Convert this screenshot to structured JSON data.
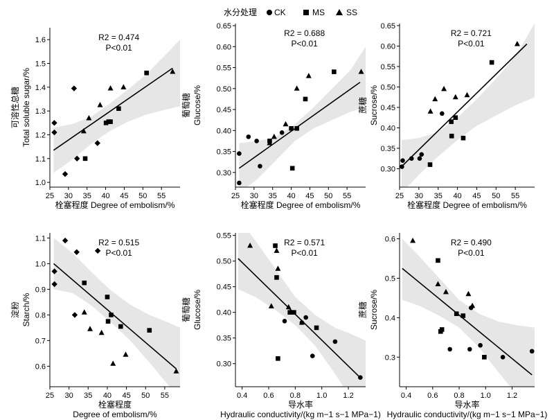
{
  "legend": {
    "title": "水分处理",
    "items": [
      {
        "label": "CK",
        "marker": "circle"
      },
      {
        "label": "MS",
        "marker": "square"
      },
      {
        "label": "SS",
        "marker": "triangle"
      }
    ]
  },
  "chart_data": [
    {
      "type": "scatter",
      "xlabel": "栓塞程度 Degree of embolism/%",
      "ylabel": [
        "可溶性总糖",
        "Total soluble sugar/%"
      ],
      "xlim": [
        25,
        60
      ],
      "ylim": [
        0.98,
        1.65
      ],
      "xticks": [
        25,
        30,
        35,
        40,
        45,
        50,
        55
      ],
      "yticks": [
        1.0,
        1.1,
        1.2,
        1.3,
        1.4,
        1.5,
        1.6
      ],
      "ytick_decimals": 1,
      "stats": {
        "r2": "R2 = 0.474",
        "p": "P<0.01"
      },
      "fit": {
        "x": [
          26,
          58
        ],
        "y": [
          1.135,
          1.48
        ]
      },
      "band": {
        "x": [
          26,
          31,
          36,
          41,
          46,
          51,
          56,
          60
        ],
        "upper": [
          1.23,
          1.245,
          1.275,
          1.33,
          1.39,
          1.455,
          1.535,
          1.6
        ],
        "lower": [
          1.04,
          1.095,
          1.16,
          1.215,
          1.255,
          1.285,
          1.305,
          1.32
        ]
      },
      "series": [
        {
          "marker": "diamond",
          "x": [
            26.2,
            26.2,
            31.5,
            32.3,
            29.1,
            37.8
          ],
          "y": [
            1.21,
            1.25,
            1.395,
            1.1,
            1.035,
            1.165
          ]
        },
        {
          "marker": "square",
          "x": [
            34.5,
            40.1,
            40.8,
            41.3,
            43.5,
            51.0
          ],
          "y": [
            1.1,
            1.25,
            1.255,
            1.255,
            1.31,
            1.46
          ]
        },
        {
          "marker": "triangle",
          "x": [
            34.1,
            35.5,
            38.5,
            41.3,
            44.8,
            58.0
          ],
          "y": [
            1.215,
            1.27,
            1.325,
            1.395,
            1.4,
            1.465
          ]
        }
      ]
    },
    {
      "type": "scatter",
      "xlabel": "栓塞程度 Degree of embolism/%",
      "ylabel": [
        "葡萄糖",
        "Glucose/%"
      ],
      "xlim": [
        25,
        60
      ],
      "ylim": [
        0.265,
        0.655
      ],
      "xticks": [
        25,
        30,
        35,
        40,
        45,
        50,
        55
      ],
      "yticks": [
        0.3,
        0.35,
        0.4,
        0.45,
        0.5,
        0.55,
        0.6,
        0.65
      ],
      "ytick_decimals": 2,
      "stats": {
        "r2": "R2 = 0.688",
        "p": "P<0.01"
      },
      "fit": {
        "x": [
          26,
          58.5
        ],
        "y": [
          0.31,
          0.515
        ]
      },
      "band": {
        "x": [
          26,
          31,
          36,
          41,
          46,
          51,
          56,
          60
        ],
        "upper": [
          0.37,
          0.375,
          0.385,
          0.415,
          0.455,
          0.5,
          0.545,
          0.6
        ],
        "lower": [
          0.25,
          0.285,
          0.33,
          0.375,
          0.405,
          0.425,
          0.445,
          0.455
        ]
      },
      "series": [
        {
          "marker": "circle",
          "x": [
            26.0,
            26.0,
            28.5,
            30.7,
            31.6,
            37.5
          ],
          "y": [
            0.345,
            0.275,
            0.385,
            0.375,
            0.315,
            0.395
          ]
        },
        {
          "marker": "square",
          "x": [
            34.2,
            40.0,
            40.3,
            41.5,
            43.8,
            51.5
          ],
          "y": [
            0.375,
            0.405,
            0.31,
            0.405,
            0.475,
            0.54
          ]
        },
        {
          "marker": "triangle",
          "x": [
            34.2,
            35.4,
            38.5,
            41.5,
            44.7,
            58.8
          ],
          "y": [
            0.37,
            0.385,
            0.415,
            0.5,
            0.53,
            0.54
          ]
        }
      ]
    },
    {
      "type": "scatter",
      "xlabel": "栓塞程度 Degree of embolism/%",
      "ylabel": [
        "蔗糖",
        "Sucrose/%"
      ],
      "xlim": [
        25,
        60
      ],
      "ylim": [
        0.255,
        0.655
      ],
      "xticks": [
        25,
        30,
        35,
        40,
        45,
        50,
        55
      ],
      "yticks": [
        0.3,
        0.35,
        0.4,
        0.45,
        0.5,
        0.55,
        0.6,
        0.65
      ],
      "ytick_decimals": 2,
      "stats": {
        "r2": "R2 = 0.721",
        "p": "P<0.01"
      },
      "fit": {
        "x": [
          25.5,
          58
        ],
        "y": [
          0.305,
          0.605
        ]
      },
      "band": {
        "x": [
          25.5,
          30,
          35,
          40,
          45,
          50,
          55,
          60
        ],
        "upper": [
          0.37,
          0.375,
          0.39,
          0.425,
          0.47,
          0.52,
          0.575,
          0.655
        ],
        "lower": [
          0.24,
          0.285,
          0.33,
          0.37,
          0.405,
          0.43,
          0.455,
          0.475
        ]
      },
      "series": [
        {
          "marker": "circle",
          "x": [
            25.6,
            25.8,
            28.1,
            30.2,
            30.7,
            36.0
          ],
          "y": [
            0.305,
            0.32,
            0.325,
            0.325,
            0.335,
            0.435
          ]
        },
        {
          "marker": "square",
          "x": [
            32.9,
            38.5,
            38.4,
            39.5,
            41.5,
            48.9
          ],
          "y": [
            0.31,
            0.38,
            0.415,
            0.425,
            0.375,
            0.56
          ]
        },
        {
          "marker": "triangle",
          "x": [
            33.0,
            34.2,
            36.5,
            39.5,
            42.5,
            55.5
          ],
          "y": [
            0.44,
            0.47,
            0.495,
            0.475,
            0.48,
            0.605
          ]
        }
      ]
    },
    {
      "type": "scatter",
      "xlabel": [
        "栓塞程度",
        "Degree of embolism/%"
      ],
      "ylabel": [
        "淀粉",
        "Starch/%"
      ],
      "xlim": [
        25,
        59
      ],
      "ylim": [
        0.52,
        1.12
      ],
      "xticks": [
        25,
        30,
        35,
        40,
        45,
        50,
        55
      ],
      "yticks": [
        0.6,
        0.7,
        0.8,
        0.9,
        1.0,
        1.1
      ],
      "ytick_decimals": 1,
      "stats": {
        "r2": "R2 = 0.515",
        "p": "P<0.01"
      },
      "fit": {
        "x": [
          26,
          58
        ],
        "y": [
          1.0,
          0.59
        ]
      },
      "band": {
        "x": [
          26,
          31,
          36,
          41,
          46,
          51,
          56,
          59
        ],
        "upper": [
          1.1,
          1.04,
          0.965,
          0.895,
          0.84,
          0.8,
          0.77,
          0.75
        ],
        "lower": [
          0.9,
          0.885,
          0.835,
          0.77,
          0.7,
          0.615,
          0.525,
          0.48
        ]
      },
      "series": [
        {
          "marker": "diamond",
          "x": [
            26.2,
            26.2,
            29.0,
            31.5,
            32.0,
            37.5
          ],
          "y": [
            0.97,
            0.92,
            1.09,
            0.8,
            1.045,
            1.05
          ]
        },
        {
          "marker": "square",
          "x": [
            34.0,
            40.0,
            40.2,
            41.0,
            43.5,
            51.0
          ],
          "y": [
            0.925,
            0.87,
            0.775,
            0.8,
            0.755,
            0.74
          ]
        },
        {
          "marker": "triangle",
          "x": [
            34.0,
            35.5,
            38.5,
            41.5,
            44.8,
            58.0
          ],
          "y": [
            0.81,
            0.745,
            0.73,
            0.61,
            0.645,
            0.58
          ]
        }
      ]
    },
    {
      "type": "scatter",
      "xlabel": [
        "导水率",
        "Hydraulic conductivity/(kg m−1 s−1 MPa−1)"
      ],
      "ylabel": [
        "葡萄糖",
        "Glucose/%"
      ],
      "xlim": [
        0.35,
        1.33
      ],
      "ylim": [
        0.255,
        0.555
      ],
      "xticks": [
        0.4,
        0.6,
        0.8,
        1.0,
        1.2
      ],
      "yticks": [
        0.3,
        0.35,
        0.4,
        0.45,
        0.5,
        0.55
      ],
      "ytick_decimals": 2,
      "xtick_decimals": 1,
      "stats": {
        "r2": "R2 = 0.571",
        "p": "P<0.01"
      },
      "fit": {
        "x": [
          0.37,
          1.3
        ],
        "y": [
          0.505,
          0.27
        ]
      },
      "band": {
        "x": [
          0.37,
          0.5,
          0.65,
          0.8,
          0.95,
          1.1,
          1.2,
          1.33
        ],
        "upper": [
          0.585,
          0.54,
          0.485,
          0.43,
          0.395,
          0.37,
          0.36,
          0.345
        ],
        "lower": [
          0.445,
          0.43,
          0.405,
          0.375,
          0.335,
          0.28,
          0.24,
          0.2
        ]
      },
      "series": [
        {
          "marker": "circle",
          "x": [
            0.72,
            0.85,
            0.88,
            0.93,
            1.1,
            1.29
          ],
          "y": [
            0.383,
            0.38,
            0.39,
            0.315,
            0.343,
            0.273
          ]
        },
        {
          "marker": "square",
          "x": [
            0.65,
            0.66,
            0.67,
            0.76,
            0.79,
            0.96
          ],
          "y": [
            0.53,
            0.468,
            0.31,
            0.4,
            0.4,
            0.37
          ]
        },
        {
          "marker": "triangle",
          "x": [
            0.46,
            0.62,
            0.66,
            0.67,
            0.75,
            0.85
          ],
          "y": [
            0.53,
            0.412,
            0.52,
            0.485,
            0.41,
            0.38
          ]
        }
      ]
    },
    {
      "type": "scatter",
      "xlabel": [
        "导水率",
        "Hydraulic conductivity/(kg m−1 s−1 MPa−1)"
      ],
      "ylabel": [
        "蔗糖",
        "Sucrose/%"
      ],
      "xlim": [
        0.35,
        1.37
      ],
      "ylim": [
        0.225,
        0.615
      ],
      "xticks": [
        0.4,
        0.6,
        0.8,
        1.0,
        1.2
      ],
      "yticks": [
        0.3,
        0.4,
        0.5,
        0.6
      ],
      "ytick_decimals": 1,
      "xtick_decimals": 1,
      "stats": {
        "r2": "R2 = 0.490",
        "p": "P<0.01"
      },
      "fit": {
        "x": [
          0.37,
          1.35
        ],
        "y": [
          0.525,
          0.255
        ]
      },
      "band": {
        "x": [
          0.37,
          0.5,
          0.65,
          0.8,
          0.95,
          1.1,
          1.25,
          1.37
        ],
        "upper": [
          0.6,
          0.555,
          0.5,
          0.445,
          0.41,
          0.39,
          0.38,
          0.375
        ],
        "lower": [
          0.445,
          0.43,
          0.405,
          0.375,
          0.325,
          0.26,
          0.2,
          0.155
        ]
      },
      "series": [
        {
          "marker": "circle",
          "x": [
            0.73,
            0.88,
            0.89,
            0.96,
            1.13,
            1.35
          ],
          "y": [
            0.32,
            0.32,
            0.425,
            0.33,
            0.3,
            0.315
          ]
        },
        {
          "marker": "square",
          "x": [
            0.64,
            0.66,
            0.67,
            0.78,
            0.83,
            0.99
          ],
          "y": [
            0.545,
            0.365,
            0.37,
            0.41,
            0.405,
            0.3
          ]
        },
        {
          "marker": "triangle",
          "x": [
            0.45,
            0.64,
            0.7,
            0.87,
            0.9
          ],
          "y": [
            0.595,
            0.485,
            0.465,
            0.46,
            0.43
          ]
        }
      ]
    }
  ]
}
